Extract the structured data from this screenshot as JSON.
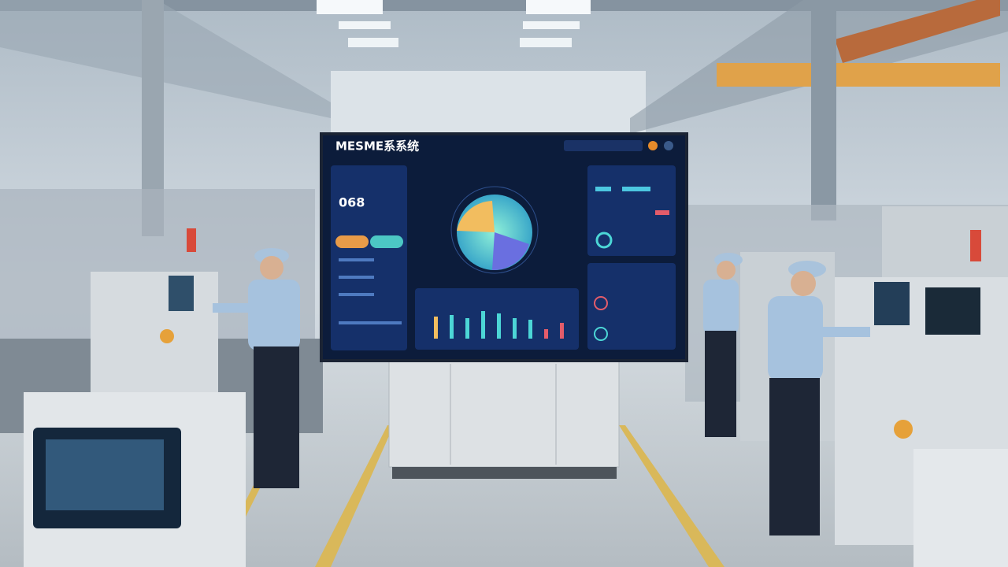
{
  "screen": {
    "title": "MESME系系统",
    "counter": "068"
  }
}
